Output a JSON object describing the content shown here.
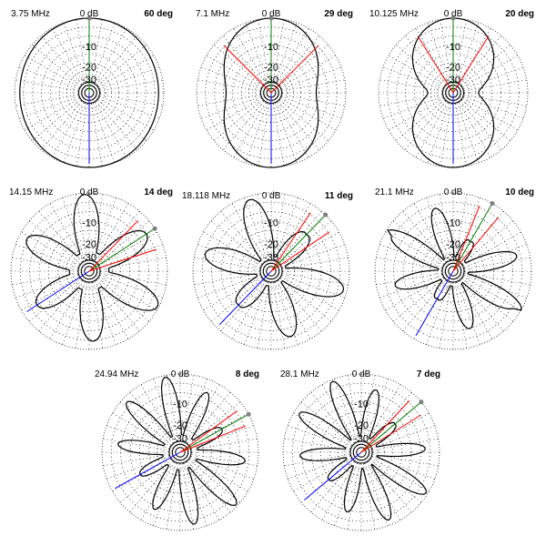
{
  "chart_data": [
    {
      "type": "polar",
      "frequency_label": "3.75 MHz",
      "elevation_label": "60 deg",
      "ring_labels": [
        "0 dB",
        "-10",
        "-20",
        "-30"
      ],
      "pattern_shape": {
        "lobes": 0,
        "front_gain": 1.0,
        "back_gain": 1.0,
        "side_gain": 0.92,
        "min_gain": 0.0,
        "nulls_deg": []
      },
      "main_lobe_deg": 0,
      "beamwidth_deg": [],
      "colors": {
        "pattern": "#000000",
        "grid": "#000000",
        "main": "#008000",
        "beamwidth": "#ff0000",
        "back": "#0000ff",
        "mark": "#808080"
      }
    },
    {
      "type": "polar",
      "frequency_label": "7.1 MHz",
      "elevation_label": "29 deg",
      "ring_labels": [
        "0 dB",
        "-10",
        "-20",
        "-30"
      ],
      "pattern_shape": {
        "lobes": 0,
        "front_gain": 1.0,
        "back_gain": 1.0,
        "side_gain": 0.55,
        "min_gain": 0.0,
        "nulls_deg": []
      },
      "main_lobe_deg": 0,
      "beamwidth_deg": [
        -45,
        45
      ],
      "colors": {
        "pattern": "#000000",
        "grid": "#000000",
        "main": "#008000",
        "beamwidth": "#ff0000",
        "back": "#0000ff",
        "mark": "#808080"
      }
    },
    {
      "type": "polar",
      "frequency_label": "10.125 MHz",
      "elevation_label": "20 deg",
      "ring_labels": [
        "0 dB",
        "-10",
        "-20",
        "-30"
      ],
      "pattern_shape": {
        "lobes": 0,
        "front_gain": 1.0,
        "back_gain": 1.0,
        "side_gain": 0.25,
        "min_gain": 0.0,
        "nulls_deg": []
      },
      "main_lobe_deg": 0,
      "beamwidth_deg": [
        -32,
        32
      ],
      "colors": {
        "pattern": "#000000",
        "grid": "#000000",
        "main": "#008000",
        "beamwidth": "#ff0000",
        "back": "#0000ff",
        "mark": "#808080"
      }
    },
    {
      "type": "polar",
      "frequency_label": "14.15 MHz",
      "elevation_label": "14 deg",
      "ring_labels": [
        "0 dB",
        "-10",
        "-20",
        "-30"
      ],
      "pattern_shape": {
        "lobes": 6,
        "front_gain": 1.0,
        "back_gain": 0.9,
        "side_gain": 0.85,
        "min_gain": 0.15,
        "nulls_deg": []
      },
      "main_lobe_deg": 57,
      "beamwidth_deg": [
        44,
        72
      ],
      "colors": {
        "pattern": "#000000",
        "grid": "#000000",
        "main": "#008000",
        "beamwidth": "#ff0000",
        "back": "#0000ff",
        "mark": "#808080"
      }
    },
    {
      "type": "polar",
      "frequency_label": "18.118 MHz",
      "elevation_label": "11 deg",
      "ring_labels": [
        "0 dB",
        "-10",
        "-20",
        "-30"
      ],
      "pattern_shape": {
        "lobes": 6,
        "front_gain": 1.0,
        "back_gain": 0.9,
        "side_gain": 0.6,
        "min_gain": 0.08,
        "nulls_deg": []
      },
      "main_lobe_deg": 44,
      "beamwidth_deg": [
        34,
        56
      ],
      "colors": {
        "pattern": "#000000",
        "grid": "#000000",
        "main": "#008000",
        "beamwidth": "#ff0000",
        "back": "#0000ff",
        "mark": "#808080"
      }
    },
    {
      "type": "polar",
      "frequency_label": "21.1 MHz",
      "elevation_label": "10 deg",
      "ring_labels": [
        "0 dB",
        "-10",
        "-20",
        "-30"
      ],
      "pattern_shape": {
        "lobes": 8,
        "front_gain": 1.0,
        "back_gain": 0.9,
        "side_gain": 0.35,
        "min_gain": 0.08,
        "nulls_deg": []
      },
      "main_lobe_deg": 30,
      "beamwidth_deg": [
        22,
        40
      ],
      "colors": {
        "pattern": "#000000",
        "grid": "#000000",
        "main": "#008000",
        "beamwidth": "#ff0000",
        "back": "#0000ff",
        "mark": "#808080"
      }
    },
    {
      "type": "polar",
      "frequency_label": "24.94 MHz",
      "elevation_label": "8 deg",
      "ring_labels": [
        "0 dB",
        "-10",
        "-20",
        "-30"
      ],
      "pattern_shape": {
        "lobes": 10,
        "front_gain": 1.0,
        "back_gain": 0.95,
        "side_gain": 0.55,
        "min_gain": 0.12,
        "nulls_deg": []
      },
      "main_lobe_deg": 61,
      "beamwidth_deg": [
        54,
        68
      ],
      "colors": {
        "pattern": "#000000",
        "grid": "#000000",
        "main": "#008000",
        "beamwidth": "#ff0000",
        "back": "#0000ff",
        "mark": "#808080"
      }
    },
    {
      "type": "polar",
      "frequency_label": "28.1 MHz",
      "elevation_label": "7 deg",
      "ring_labels": [
        "0 dB",
        "-10",
        "-20",
        "-30"
      ],
      "pattern_shape": {
        "lobes": 10,
        "front_gain": 1.0,
        "back_gain": 0.95,
        "side_gain": 0.5,
        "min_gain": 0.1,
        "nulls_deg": []
      },
      "main_lobe_deg": 50,
      "beamwidth_deg": [
        43,
        58
      ],
      "colors": {
        "pattern": "#000000",
        "grid": "#000000",
        "main": "#008000",
        "beamwidth": "#ff0000",
        "back": "#0000ff",
        "mark": "#808080"
      }
    }
  ]
}
